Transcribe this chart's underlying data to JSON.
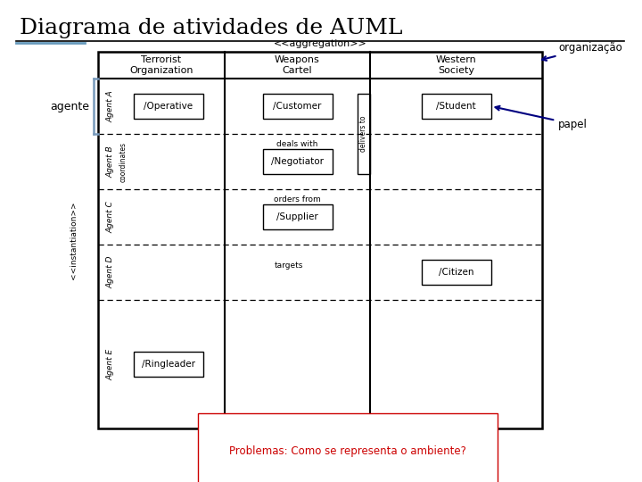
{
  "title": "Diagrama de atividades de AUML",
  "title_fontsize": 18,
  "background_color": "#ffffff",
  "aggregation_label": "<<aggregation>>",
  "instantiation_label": "<<instantiation>>",
  "agente_label": "agente",
  "organizacao_label": "organização",
  "papel_label": "papel",
  "org_columns": [
    "Terrorist\nOrganization",
    "Weapons\nCartel",
    "Western\nSociety"
  ],
  "agent_rows": [
    "Agent A",
    "Agent B",
    "Agent C",
    "Agent D",
    "Agent E"
  ],
  "roles": {
    "operative": "/Operative",
    "customer": "/Customer",
    "student": "/Student",
    "negotiator": "/Negotiator",
    "supplier": "/Supplier",
    "citizen": "/Citizen",
    "ringleader": "/Ringleader"
  },
  "relation_labels": {
    "coordinates": "coordinates",
    "deals_with": "deals with",
    "orders_from": "orders from",
    "targets": "targets",
    "delivers_to": "delivers to"
  },
  "bottom_text": "Problemas: Como se representa o ambiente?",
  "bottom_text_color": "#cc0000",
  "arrow_color": "#000080",
  "bracket_color": "#7799bb",
  "line_color": "#000000",
  "title_line_color": "#000000",
  "title_line2_color": "#6699bb"
}
